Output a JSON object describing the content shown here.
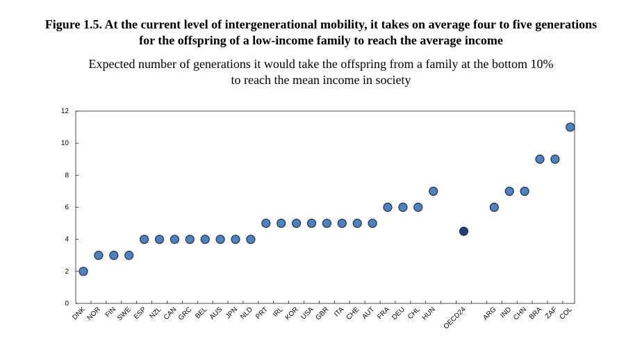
{
  "figure": {
    "title_line1": "Figure 1.5. At the current level of intergenerational mobility, it takes on average four to five generations",
    "title_line2": "for the offspring of a low-income family to reach the average income",
    "subtitle_line1": "Expected number of generations it would take the offspring from a family at the bottom 10%",
    "subtitle_line2": "to reach the mean income in society"
  },
  "chart_data": {
    "type": "scatter",
    "categories": [
      "DNK",
      "NOR",
      "FIN",
      "SWE",
      "ESP",
      "NZL",
      "CAN",
      "GRC",
      "BEL",
      "AUS",
      "JPN",
      "NLD",
      "PRT",
      "IRL",
      "KOR",
      "USA",
      "GBR",
      "ITA",
      "CHE",
      "AUT",
      "FRA",
      "DEU",
      "CHL",
      "HUN",
      "",
      "OECD24",
      "",
      "ARG",
      "IND",
      "CHN",
      "BRA",
      "ZAF",
      "COL"
    ],
    "values": [
      2,
      3,
      3,
      3,
      4,
      4,
      4,
      4,
      4,
      4,
      4,
      4,
      5,
      5,
      5,
      5,
      5,
      5,
      5,
      5,
      6,
      6,
      6,
      7,
      null,
      4.5,
      null,
      6,
      7,
      7,
      9,
      9,
      11
    ],
    "highlight": "OECD24",
    "ylim": [
      0,
      12
    ],
    "yticks": [
      0,
      2,
      4,
      6,
      8,
      10,
      12
    ],
    "grid": false,
    "colors": {
      "marker": "#4f81bd",
      "marker_edge": "#1f2f4f",
      "highlight": "#1f3d7a",
      "axis": "#000000"
    }
  }
}
